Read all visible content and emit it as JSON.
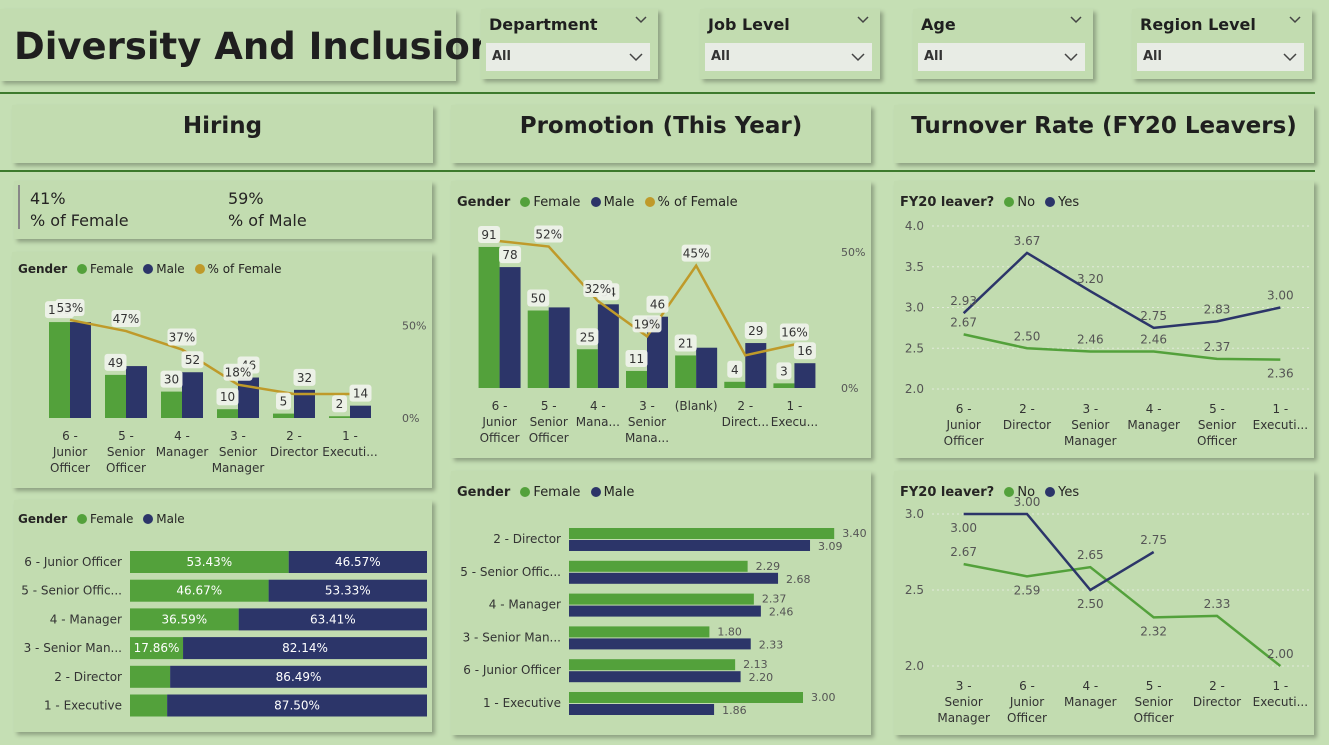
{
  "title": "Diversity And Inclusion",
  "colors": {
    "female": "#53a13b",
    "male": "#2c3569",
    "pct_line": "#bf9a2a",
    "no": "#53a13b",
    "yes": "#2c3569"
  },
  "slicers": [
    {
      "label": "Department",
      "value": "All"
    },
    {
      "label": "Job Level",
      "value": "All"
    },
    {
      "label": "Age",
      "value": "All"
    },
    {
      "label": "Region Level",
      "value": "All"
    }
  ],
  "sections": {
    "hiring": "Hiring",
    "promotion": "Promotion (This Year)",
    "turnover": "Turnover Rate (FY20 Leavers)"
  },
  "kpi": {
    "female_value": "41%",
    "female_label": "% of Female",
    "male_value": "59%",
    "male_label": "% of Male"
  },
  "legends": {
    "gender": "Gender",
    "female": "Female",
    "male": "Male",
    "pct_female": "% of Female",
    "leaver": "FY20 leaver?",
    "no": "No",
    "yes": "Yes"
  },
  "chart_data": [
    {
      "id": "hiring_combo",
      "type": "bar",
      "categories": [
        "6 - Junior Officer",
        "5 - Senior Officer",
        "4 - Manager",
        "3 - Senior Manager",
        "2 - Director",
        "1 - Executi..."
      ],
      "series": [
        {
          "name": "Female",
          "values": [
            109,
            49,
            30,
            10,
            5,
            2
          ]
        },
        {
          "name": "Male",
          "values": [
            109,
            59,
            52,
            46,
            32,
            14
          ]
        },
        {
          "name": "% of Female",
          "values": [
            53,
            47,
            37,
            18,
            13,
            13
          ]
        }
      ],
      "value_labels": {
        "female": [
          "109",
          "49",
          "30",
          "10",
          "5",
          "2"
        ],
        "male": [
          "",
          "",
          "52",
          "46",
          "32",
          "14"
        ],
        "pct": [
          "53%",
          "47%",
          "37%",
          "18%",
          "",
          ""
        ]
      },
      "secondary_ticks": [
        "50%",
        "0%"
      ],
      "legend": "top-left"
    },
    {
      "id": "hiring_stacked",
      "type": "bar",
      "categories": [
        "6 - Junior Officer",
        "5 - Senior Offic...",
        "4 - Manager",
        "3 - Senior Man...",
        "2 - Director",
        "1 - Executive"
      ],
      "series": [
        {
          "name": "Female",
          "values": [
            53.43,
            46.67,
            36.59,
            17.86,
            13.51,
            12.5
          ]
        },
        {
          "name": "Male",
          "values": [
            46.57,
            53.33,
            63.41,
            82.14,
            86.49,
            87.5
          ]
        }
      ],
      "labels_female": [
        "53.43%",
        "46.67%",
        "36.59%",
        "17.86%",
        "",
        ""
      ],
      "labels_male": [
        "46.57%",
        "53.33%",
        "63.41%",
        "82.14%",
        "86.49%",
        "87.50%"
      ]
    },
    {
      "id": "promotion_combo",
      "type": "bar",
      "categories": [
        "6 - Junior Officer",
        "5 - Senior Officer",
        "4 - Mana...",
        "3 - Senior Mana...",
        "(Blank)",
        "2 - Direct...",
        "1 - Execu..."
      ],
      "series": [
        {
          "name": "Female",
          "values": [
            91,
            50,
            25,
            11,
            21,
            4,
            3
          ]
        },
        {
          "name": "Male",
          "values": [
            78,
            52,
            54,
            46,
            26,
            29,
            16
          ]
        },
        {
          "name": "% of Female",
          "values": [
            54,
            52,
            32,
            19,
            45,
            12,
            16
          ]
        }
      ],
      "value_labels": {
        "female": [
          "91",
          "50",
          "25",
          "11",
          "21",
          "4",
          "3"
        ],
        "male": [
          "78",
          "",
          "54",
          "46",
          "",
          "29",
          "16"
        ],
        "pct": [
          "",
          "52%",
          "32%",
          "19%",
          "45%",
          "",
          "16%"
        ]
      },
      "secondary_ticks": [
        "50%",
        "0%"
      ],
      "legend": "top-left"
    },
    {
      "id": "promotion_hbar",
      "type": "bar",
      "categories": [
        "2 - Director",
        "5 - Senior Offic...",
        "4 - Manager",
        "3 - Senior Man...",
        "6 - Junior Officer",
        "1 - Executive"
      ],
      "series": [
        {
          "name": "Female",
          "values": [
            3.4,
            2.29,
            2.37,
            1.8,
            2.13,
            3.0
          ]
        },
        {
          "name": "Male",
          "values": [
            3.09,
            2.68,
            2.46,
            2.33,
            2.2,
            1.86
          ]
        }
      ],
      "labels_female": [
        "3.40",
        "2.29",
        "2.37",
        "1.80",
        "2.13",
        "3.00"
      ],
      "labels_male": [
        "3.09",
        "2.68",
        "2.46",
        "2.33",
        "2.20",
        "1.86"
      ]
    },
    {
      "id": "turnover_line1",
      "type": "line",
      "categories": [
        "6 - Junior Officer",
        "2 - Director",
        "3 - Senior Manager",
        "4 - Manager",
        "5 - Senior Officer",
        "1 - Executi..."
      ],
      "series": [
        {
          "name": "No",
          "values": [
            2.67,
            2.5,
            2.46,
            2.46,
            2.37,
            2.36
          ]
        },
        {
          "name": "Yes",
          "values": [
            2.93,
            3.67,
            3.2,
            2.75,
            2.83,
            3.0
          ]
        }
      ],
      "yticks": [
        "4.0",
        "3.5",
        "3.0",
        "2.5",
        "2.0"
      ],
      "ylim": [
        2.0,
        4.0
      ],
      "labels_no": [
        "2.67",
        "2.50",
        "2.46",
        "2.46",
        "2.37",
        "2.36"
      ],
      "labels_yes": [
        "2.93",
        "3.67",
        "3.20",
        "2.75",
        "2.83",
        "3.00"
      ]
    },
    {
      "id": "turnover_line2",
      "type": "line",
      "categories": [
        "3 - Senior Manager",
        "6 - Junior Officer",
        "4 - Manager",
        "5 - Senior Officer",
        "2 - Director",
        "1 - Executi..."
      ],
      "series": [
        {
          "name": "No",
          "values": [
            2.67,
            2.59,
            2.65,
            2.32,
            2.33,
            2.0
          ]
        },
        {
          "name": "Yes",
          "values": [
            3.0,
            3.0,
            2.5,
            2.75,
            null,
            null
          ]
        }
      ],
      "yticks": [
        "3.0",
        "2.5",
        "2.0"
      ],
      "ylim": [
        2.0,
        3.0
      ],
      "labels_no": [
        "2.67",
        "2.59",
        "2.65",
        "2.32",
        "2.33",
        "2.00"
      ],
      "labels_yes": [
        "3.00",
        "3.00",
        "2.50",
        "2.75",
        "",
        ""
      ]
    }
  ]
}
